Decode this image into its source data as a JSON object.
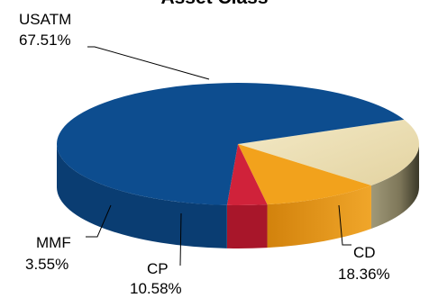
{
  "chart_data": {
    "type": "pie",
    "title": "Asset Class",
    "slices": [
      {
        "label": "USATM",
        "value": 67.51,
        "percent_label": "67.51%",
        "color": "#0d4d8f",
        "side_color": "#0a3d72"
      },
      {
        "label": "CD",
        "value": 18.36,
        "percent_label": "18.36%",
        "color": "#ece0b6",
        "side_color": "#8b8466"
      },
      {
        "label": "CP",
        "value": 10.58,
        "percent_label": "10.58%",
        "color": "#f2a21c",
        "side_color": "#d4860f"
      },
      {
        "label": "MMF",
        "value": 3.55,
        "percent_label": "3.55%",
        "color": "#d0223a",
        "side_color": "#a8162a"
      }
    ],
    "style": "3d-tilted"
  }
}
